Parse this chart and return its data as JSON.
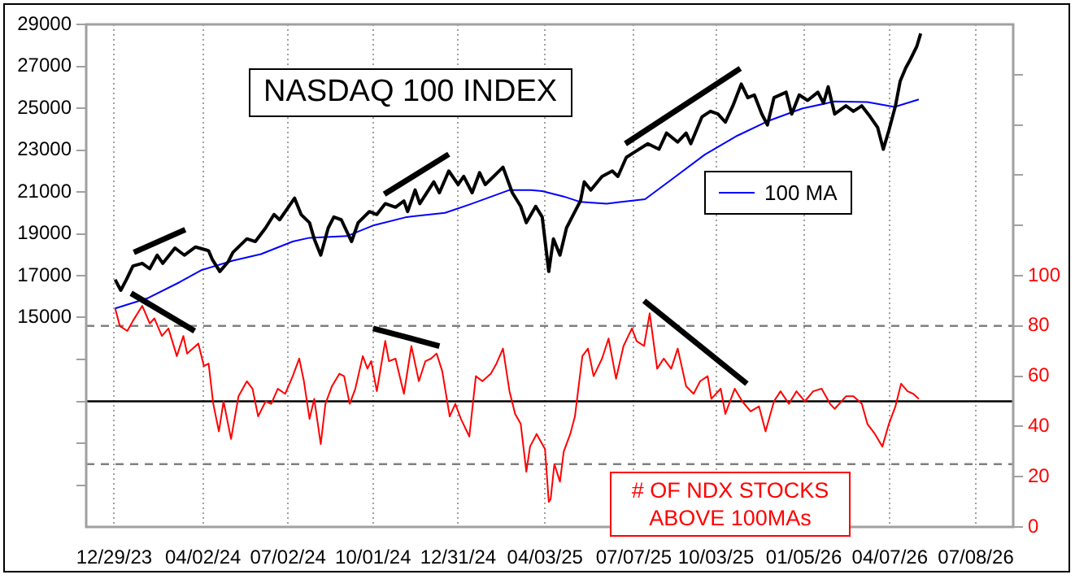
{
  "chart_data": {
    "type": "line",
    "title": "NASDAQ 100 INDEX",
    "annotations": [
      "# OF NDX STOCKS ABOVE 100MAs"
    ],
    "xlim": [
      "2023-11-29",
      "2026-08-17"
    ],
    "xticks": [
      {
        "value": "2023-12-29",
        "label": "12/29/23"
      },
      {
        "value": "2024-04-02",
        "label": "04/02/24"
      },
      {
        "value": "2024-07-02",
        "label": "07/02/24"
      },
      {
        "value": "2024-10-01",
        "label": "10/01/24"
      },
      {
        "value": "2024-12-31",
        "label": "12/31/24"
      },
      {
        "value": "2025-04-03",
        "label": "04/03/25"
      },
      {
        "value": "2025-07-07",
        "label": "07/07/25"
      },
      {
        "value": "2025-10-03",
        "label": "10/03/25"
      },
      {
        "value": "2026-01-05",
        "label": "01/05/26"
      },
      {
        "value": "2026-04-07",
        "label": "04/07/26"
      },
      {
        "value": "2026-07-08",
        "label": "07/08/26"
      }
    ],
    "ylim": [
      5000,
      29000
    ],
    "yticks": [
      {
        "value": 7000,
        "label": null
      },
      {
        "value": 9000,
        "label": null
      },
      {
        "value": 11000,
        "label": null
      },
      {
        "value": 13000,
        "label": null
      },
      15000,
      17000,
      19000,
      21000,
      23000,
      25000,
      27000,
      29000
    ],
    "y2lim": [
      0,
      200
    ],
    "y2ticks": [
      0,
      20,
      40,
      60,
      80,
      100,
      {
        "value": 120,
        "label": null
      },
      {
        "value": 140,
        "label": null
      },
      {
        "value": 160,
        "label": null
      },
      {
        "value": 180,
        "label": null
      }
    ],
    "grid": "x",
    "legend": "top right",
    "marker": "none",
    "line_style": "solid",
    "ref_lines": [
      {
        "axis": "y2",
        "value": 80,
        "color": "#808080",
        "line_style": "dashed"
      },
      {
        "axis": "y2",
        "value": 25,
        "color": "#808080",
        "line_style": "dashed"
      },
      {
        "axis": "y2",
        "value": 50,
        "color": "#000000",
        "line_style": "solid"
      }
    ],
    "series": [
      {
        "color": "#000000",
        "x": [
          "2024-01-19",
          "2024-03-14"
        ],
        "values": [
          18110,
          19200
        ]
      },
      {
        "color": "#000000",
        "x": [
          "2024-10-13",
          "2024-12-21"
        ],
        "values": [
          20890,
          22800
        ]
      },
      {
        "color": "#000000",
        "x": [
          "2025-06-28",
          "2025-10-29"
        ],
        "values": [
          23300,
          26900
        ]
      },
      {
        "color": "#000000",
        "axis": "y2",
        "x": [
          "2024-01-16",
          "2024-03-24"
        ],
        "values": [
          93,
          78
        ]
      },
      {
        "color": "#000000",
        "axis": "y2",
        "x": [
          "2024-10-01",
          "2024-12-11"
        ],
        "values": [
          79,
          72
        ]
      },
      {
        "color": "#000000",
        "axis": "y2",
        "x": [
          "2025-07-18",
          "2025-11-05"
        ],
        "values": [
          90,
          57
        ]
      },
      {
        "color": "#000000",
        "x": [
          "2023-12-30",
          "2024-01-05",
          "2024-01-11",
          "2024-01-18",
          "2024-01-28",
          "2024-02-05",
          "2024-02-13",
          "2024-02-19",
          "2024-03-03",
          "2024-03-13",
          "2024-03-25",
          "2024-04-08",
          "2024-04-12",
          "2024-04-20",
          "2024-04-29",
          "2024-05-04",
          "2024-05-19",
          "2024-05-28",
          "2024-06-08",
          "2024-06-17",
          "2024-06-23",
          "2024-07-09",
          "2024-07-16",
          "2024-07-25",
          "2024-07-30",
          "2024-08-06",
          "2024-08-14",
          "2024-08-20",
          "2024-08-28",
          "2024-09-08",
          "2024-09-15",
          "2024-09-27",
          "2024-10-05",
          "2024-10-14",
          "2024-10-25",
          "2024-11-03",
          "2024-11-07",
          "2024-11-15",
          "2024-11-20",
          "2024-12-05",
          "2024-12-11",
          "2024-12-21",
          "2024-12-31",
          "2025-01-06",
          "2025-01-15",
          "2025-01-23",
          "2025-01-29",
          "2025-02-07",
          "2025-02-17",
          "2025-02-27",
          "2025-03-08",
          "2025-03-14",
          "2025-03-24",
          "2025-03-31",
          "2025-04-07",
          "2025-04-12",
          "2025-04-19",
          "2025-04-26",
          "2025-05-05",
          "2025-05-11",
          "2025-05-15",
          "2025-05-22",
          "2025-06-03",
          "2025-06-14",
          "2025-06-20",
          "2025-06-29",
          "2025-07-08",
          "2025-07-22",
          "2025-08-03",
          "2025-08-11",
          "2025-08-23",
          "2025-09-01",
          "2025-09-06",
          "2025-09-18",
          "2025-09-27",
          "2025-10-05",
          "2025-10-13",
          "2025-10-21",
          "2025-10-30",
          "2025-11-06",
          "2025-11-13",
          "2025-11-21",
          "2025-11-27",
          "2025-12-04",
          "2025-12-17",
          "2025-12-23",
          "2025-12-31",
          "2026-01-09",
          "2026-01-20",
          "2026-01-26",
          "2026-01-31",
          "2026-02-07",
          "2026-02-19",
          "2026-02-27",
          "2026-03-08",
          "2026-03-17",
          "2026-03-25",
          "2026-03-31",
          "2026-04-06",
          "2026-04-13",
          "2026-04-18",
          "2026-04-24",
          "2026-04-29",
          "2026-05-06",
          "2026-05-10"
        ],
        "values": [
          16810,
          16300,
          16810,
          17460,
          17590,
          17330,
          17980,
          17590,
          18320,
          17980,
          18370,
          18190,
          17770,
          17200,
          17670,
          18110,
          18760,
          18630,
          19280,
          19920,
          19670,
          20700,
          19920,
          19530,
          18760,
          17980,
          19280,
          19800,
          19670,
          18630,
          19530,
          20060,
          19920,
          20440,
          20270,
          20570,
          20060,
          21090,
          20440,
          21480,
          20960,
          22000,
          21350,
          21740,
          20960,
          21920,
          21350,
          21740,
          22180,
          20960,
          20310,
          19530,
          20310,
          19800,
          17200,
          18760,
          17980,
          19280,
          20060,
          20580,
          21480,
          21090,
          21740,
          22000,
          21740,
          22650,
          22910,
          23300,
          23040,
          23810,
          23380,
          23810,
          23300,
          24590,
          24850,
          24720,
          24330,
          25110,
          26150,
          25500,
          25630,
          24720,
          24200,
          25500,
          25760,
          24720,
          25630,
          25370,
          25760,
          25240,
          26020,
          24720,
          25110,
          24850,
          25110,
          24590,
          24070,
          23040,
          23940,
          25110,
          26280,
          26920,
          27330,
          27970,
          28570
        ]
      },
      {
        "name": "100 MA",
        "color": "#0000ff",
        "x": [
          "2023-12-30",
          "2024-02-02",
          "2024-03-08",
          "2024-03-31",
          "2024-05-04",
          "2024-06-03",
          "2024-07-07",
          "2024-07-25",
          "2024-09-03",
          "2024-10-02",
          "2024-11-06",
          "2024-12-17",
          "2025-01-15",
          "2025-02-24",
          "2025-03-19",
          "2025-03-31",
          "2025-04-23",
          "2025-05-11",
          "2025-06-08",
          "2025-07-19",
          "2025-08-17",
          "2025-09-21",
          "2025-10-26",
          "2025-11-29",
          "2026-01-03",
          "2026-02-07",
          "2026-03-14",
          "2026-04-12",
          "2026-05-08"
        ],
        "values": [
          15440,
          15910,
          16690,
          17260,
          17720,
          18030,
          18630,
          18810,
          18890,
          19410,
          19800,
          20000,
          20440,
          21090,
          21090,
          21040,
          20780,
          20520,
          20440,
          20650,
          21610,
          22780,
          23690,
          24410,
          24980,
          25320,
          25290,
          25060,
          25420
        ]
      },
      {
        "color": "#ff0000",
        "axis": "y2",
        "x": [
          "2023-12-30",
          "2024-01-04",
          "2024-01-12",
          "2024-01-18",
          "2024-01-28",
          "2024-02-05",
          "2024-02-10",
          "2024-02-18",
          "2024-02-25",
          "2024-03-05",
          "2024-03-12",
          "2024-03-16",
          "2024-03-28",
          "2024-04-03",
          "2024-04-08",
          "2024-04-13",
          "2024-04-19",
          "2024-04-24",
          "2024-05-02",
          "2024-05-10",
          "2024-05-19",
          "2024-05-25",
          "2024-05-31",
          "2024-06-08",
          "2024-06-14",
          "2024-06-21",
          "2024-06-29",
          "2024-07-07",
          "2024-07-14",
          "2024-07-19",
          "2024-07-25",
          "2024-07-30",
          "2024-08-06",
          "2024-08-11",
          "2024-08-18",
          "2024-08-26",
          "2024-08-31",
          "2024-09-06",
          "2024-09-12",
          "2024-09-20",
          "2024-09-25",
          "2024-09-29",
          "2024-10-05",
          "2024-10-14",
          "2024-10-18",
          "2024-10-25",
          "2024-11-03",
          "2024-11-11",
          "2024-11-19",
          "2024-11-26",
          "2024-12-02",
          "2024-12-08",
          "2024-12-14",
          "2024-12-22",
          "2024-12-28",
          "2025-01-03",
          "2025-01-12",
          "2025-01-19",
          "2025-01-26",
          "2025-02-04",
          "2025-02-10",
          "2025-02-17",
          "2025-02-24",
          "2025-03-02",
          "2025-03-08",
          "2025-03-14",
          "2025-03-18",
          "2025-03-25",
          "2025-04-03",
          "2025-04-07",
          "2025-04-09",
          "2025-04-13",
          "2025-04-19",
          "2025-04-23",
          "2025-04-30",
          "2025-05-05",
          "2025-05-09",
          "2025-05-13",
          "2025-05-19",
          "2025-05-25",
          "2025-06-03",
          "2025-06-10",
          "2025-06-18",
          "2025-06-26",
          "2025-07-05",
          "2025-07-10",
          "2025-07-18",
          "2025-07-24",
          "2025-08-01",
          "2025-08-08",
          "2025-08-16",
          "2025-08-23",
          "2025-09-01",
          "2025-09-09",
          "2025-09-16",
          "2025-09-24",
          "2025-09-28",
          "2025-10-08",
          "2025-10-13",
          "2025-10-23",
          "2025-10-31",
          "2025-11-09",
          "2025-11-18",
          "2025-11-25",
          "2025-12-04",
          "2025-12-11",
          "2025-12-20",
          "2025-12-28",
          "2026-01-06",
          "2026-01-15",
          "2026-01-24",
          "2026-02-02",
          "2026-02-07",
          "2026-02-19",
          "2026-02-27",
          "2026-03-08",
          "2026-03-14",
          "2026-03-22",
          "2026-03-30",
          "2026-04-06",
          "2026-04-13",
          "2026-04-19",
          "2026-04-26",
          "2026-05-02",
          "2026-05-08"
        ],
        "values": [
          87,
          80,
          78,
          82,
          88,
          81,
          83,
          76,
          79,
          68,
          76,
          69,
          73,
          64,
          65,
          49,
          38,
          50,
          35,
          52,
          58,
          55,
          44,
          50,
          49,
          55,
          53,
          60,
          67,
          58,
          43,
          51,
          33,
          49,
          56,
          61,
          60,
          49,
          55,
          68,
          63,
          66,
          54,
          74,
          66,
          67,
          53,
          72,
          58,
          66,
          67,
          69,
          62,
          44,
          49,
          43,
          36,
          60,
          58,
          61,
          65,
          71,
          54,
          45,
          41,
          22,
          32,
          37,
          31,
          10,
          11,
          25,
          18,
          30,
          37,
          44,
          56,
          68,
          71,
          60,
          67,
          75,
          59,
          72,
          79,
          74,
          72,
          85,
          63,
          67,
          63,
          71,
          56,
          53,
          58,
          60,
          51,
          55,
          45,
          55,
          50,
          46,
          48,
          38,
          50,
          54,
          49,
          54,
          50,
          54,
          55,
          49,
          47,
          52,
          52,
          49,
          41,
          37,
          32,
          41,
          48,
          57,
          54,
          53,
          51
        ]
      }
    ]
  }
}
